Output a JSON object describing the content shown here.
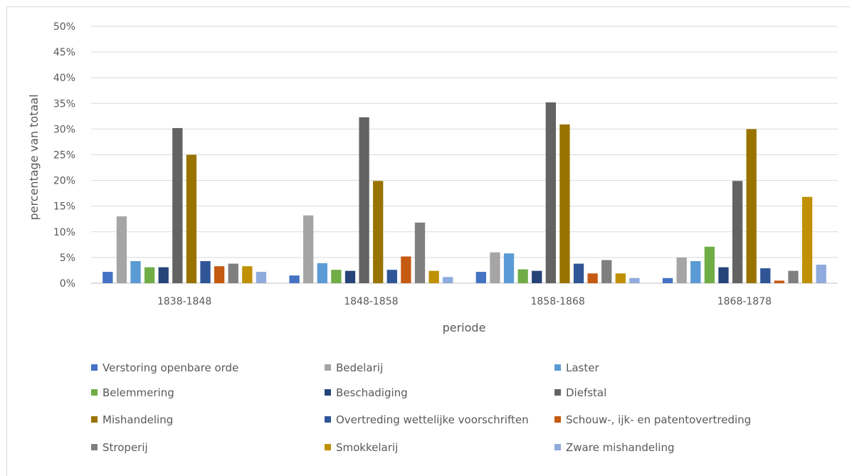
{
  "chart_data": {
    "type": "bar",
    "title": "",
    "xlabel": "periode",
    "ylabel": "percentage van totaal",
    "ylim": [
      0,
      50
    ],
    "yticks": [
      "0%",
      "5%",
      "10%",
      "15%",
      "20%",
      "25%",
      "30%",
      "35%",
      "40%",
      "45%",
      "50%"
    ],
    "grid": true,
    "legend_position": "bottom",
    "categories": [
      "1838-1848",
      "1848-1858",
      "1858-1868",
      "1868-1878"
    ],
    "series": [
      {
        "name": "Verstoring openbare orde",
        "color": "#4472c4",
        "values": [
          2.2,
          1.5,
          2.2,
          1.0
        ]
      },
      {
        "name": "Bedelarij",
        "color": "#a5a5a5",
        "values": [
          13.0,
          13.2,
          6.0,
          5.0
        ]
      },
      {
        "name": "Laster",
        "color": "#5b9bd5",
        "values": [
          4.3,
          3.9,
          5.8,
          4.3
        ]
      },
      {
        "name": "Belemmering",
        "color": "#70ad47",
        "values": [
          3.1,
          2.6,
          2.7,
          7.1
        ]
      },
      {
        "name": "Beschadiging",
        "color": "#264478",
        "values": [
          3.1,
          2.4,
          2.4,
          3.1
        ]
      },
      {
        "name": "Diefstal",
        "color": "#636363",
        "values": [
          30.2,
          32.3,
          35.2,
          19.9
        ]
      },
      {
        "name": "Mishandeling",
        "color": "#997300",
        "values": [
          25.0,
          19.9,
          30.9,
          30.0
        ]
      },
      {
        "name": "Overtreding wettelijke voorschriften",
        "color": "#2f5597",
        "values": [
          4.3,
          2.6,
          3.8,
          2.9
        ]
      },
      {
        "name": "Schouw-, ijk- en patentovertreding",
        "color": "#c55a11",
        "values": [
          3.3,
          5.2,
          1.9,
          0.5
        ]
      },
      {
        "name": "Stroperij",
        "color": "#7f7f7f",
        "values": [
          3.8,
          11.8,
          4.5,
          2.4
        ]
      },
      {
        "name": "Smokkelarij",
        "color": "#bf9000",
        "values": [
          3.3,
          2.4,
          1.9,
          16.8
        ]
      },
      {
        "name": "Zware mishandeling",
        "color": "#8faadc",
        "values": [
          2.2,
          1.2,
          1.0,
          3.6
        ]
      }
    ]
  }
}
